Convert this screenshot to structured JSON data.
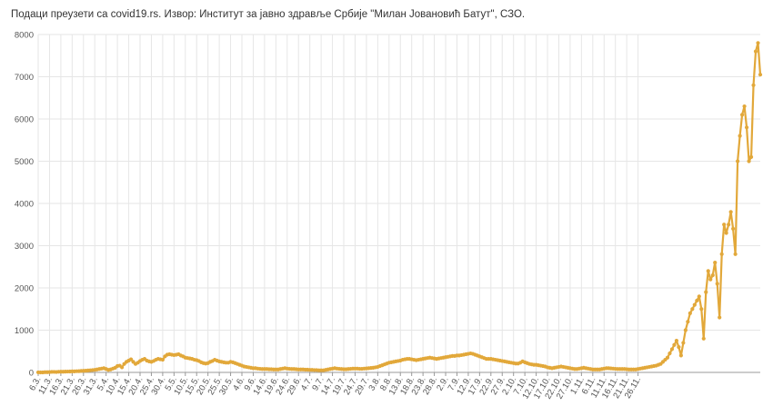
{
  "header": {
    "source_note": "Подаци преузети са covid19.rs. Извор: Институт за јавно здравље Србије \"Милан Јовановић Батут\", СЗО."
  },
  "colors": {
    "line": "#e2a83a",
    "grid": "#e6e6e6",
    "axis": "#999999"
  },
  "chart_data": {
    "type": "line",
    "title": "",
    "xlabel": "",
    "ylabel": "",
    "ylim": [
      0,
      8000
    ],
    "yticks": [
      0,
      1000,
      2000,
      3000,
      4000,
      5000,
      6000,
      7000,
      8000
    ],
    "grid": true,
    "legend": "none",
    "x_tick_labels": [
      "6.3.",
      "11.3.",
      "16.3.",
      "21.3.",
      "26.3.",
      "31.3.",
      "5.4.",
      "10.4.",
      "15.4.",
      "20.4.",
      "25.4.",
      "30.4.",
      "5.5.",
      "10.5.",
      "15.5.",
      "20.5.",
      "25.5.",
      "30.5.",
      "4.6.",
      "9.6.",
      "14.6.",
      "19.6.",
      "24.6.",
      "29.6.",
      "4.7.",
      "9.7.",
      "14.7.",
      "19.7.",
      "24.7.",
      "29.7.",
      "3.8.",
      "8.8.",
      "13.8.",
      "18.8.",
      "23.8.",
      "28.8.",
      "2.9.",
      "7.9.",
      "12.9.",
      "17.9.",
      "22.9.",
      "27.9.",
      "2.10.",
      "7.10.",
      "12.10.",
      "17.10.",
      "22.10.",
      "27.10.",
      "1.11.",
      "6.11.",
      "11.11.",
      "16.11.",
      "21.11.",
      "26.11."
    ],
    "series": [
      {
        "x_start": "6.3.",
        "x_end": "28.11.",
        "values": [
          1,
          0,
          0,
          5,
          5,
          8,
          12,
          12,
          10,
          15,
          17,
          16,
          18,
          20,
          22,
          25,
          24,
          28,
          30,
          35,
          38,
          40,
          45,
          50,
          55,
          60,
          70,
          80,
          90,
          100,
          80,
          60,
          70,
          90,
          110,
          150,
          160,
          120,
          200,
          250,
          280,
          310,
          250,
          200,
          230,
          270,
          300,
          320,
          280,
          260,
          250,
          270,
          300,
          320,
          310,
          300,
          380,
          420,
          430,
          420,
          410,
          420,
          430,
          400,
          380,
          350,
          340,
          330,
          320,
          300,
          290,
          270,
          240,
          220,
          210,
          220,
          250,
          270,
          300,
          280,
          260,
          250,
          240,
          230,
          230,
          250,
          240,
          220,
          200,
          180,
          160,
          140,
          130,
          120,
          110,
          100,
          100,
          90,
          85,
          80,
          80,
          80,
          75,
          75,
          70,
          70,
          70,
          80,
          90,
          100,
          90,
          85,
          80,
          80,
          75,
          70,
          70,
          70,
          65,
          65,
          60,
          60,
          55,
          55,
          50,
          50,
          50,
          60,
          70,
          80,
          90,
          100,
          90,
          85,
          80,
          75,
          75,
          80,
          85,
          90,
          90,
          90,
          85,
          85,
          90,
          95,
          100,
          105,
          110,
          120,
          130,
          150,
          170,
          190,
          210,
          230,
          240,
          250,
          260,
          270,
          280,
          300,
          310,
          320,
          320,
          310,
          300,
          290,
          300,
          310,
          320,
          330,
          340,
          350,
          340,
          330,
          320,
          330,
          340,
          350,
          360,
          370,
          380,
          390,
          390,
          400,
          400,
          410,
          420,
          430,
          440,
          450,
          440,
          420,
          400,
          380,
          360,
          340,
          320,
          320,
          320,
          310,
          300,
          290,
          280,
          270,
          260,
          250,
          240,
          230,
          220,
          210,
          210,
          230,
          260,
          240,
          220,
          200,
          190,
          180,
          180,
          170,
          160,
          150,
          140,
          120,
          110,
          100,
          110,
          120,
          130,
          140,
          130,
          120,
          110,
          100,
          90,
          80,
          80,
          90,
          100,
          110,
          100,
          90,
          80,
          70,
          70,
          70,
          70,
          80,
          90,
          100,
          100,
          95,
          90,
          85,
          80,
          80,
          80,
          80,
          75,
          70,
          70,
          70,
          70,
          80,
          90,
          100,
          110,
          120,
          130,
          140,
          150,
          160,
          180,
          200,
          250,
          300,
          350,
          450,
          550,
          650,
          750,
          600,
          400,
          700,
          1000,
          1200,
          1400,
          1500,
          1600,
          1700,
          1800,
          1500,
          800,
          1900,
          2400,
          2200,
          2300,
          2600,
          2100,
          1300,
          2800,
          3500,
          3300,
          3500,
          3800,
          3400,
          2800,
          5000,
          5600,
          6100,
          6300,
          5800,
          5000,
          5100,
          6800,
          7600,
          7800,
          7050
        ]
      }
    ]
  }
}
